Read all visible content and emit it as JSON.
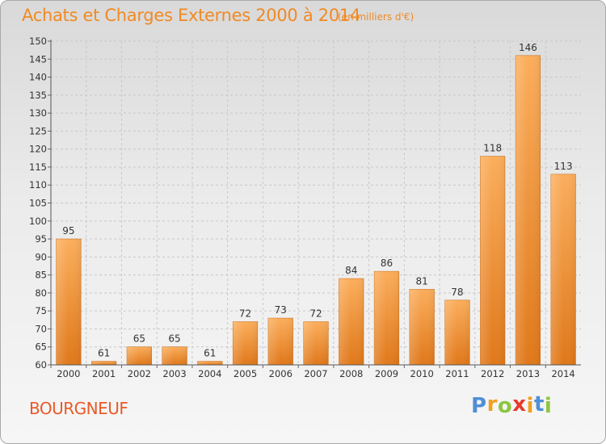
{
  "title": "Achats et Charges Externes 2000 à 2014",
  "subtitle": "(en milliers d'€)",
  "place": "BOURGNEUF",
  "logo": {
    "text": "Proxiti",
    "letters": [
      {
        "char": "P",
        "color": "#4f8fd6"
      },
      {
        "char": "r",
        "color": "#f0a020"
      },
      {
        "char": "o",
        "color": "#8cc63f"
      },
      {
        "char": "x",
        "color": "#e63a2e"
      },
      {
        "char": "i",
        "color": "#f0a020"
      },
      {
        "char": "t",
        "color": "#4f8fd6"
      },
      {
        "char": "i",
        "color": "#8cc63f"
      }
    ]
  },
  "colors": {
    "accent": "#f08a24",
    "bar_light": "#f9a955",
    "bar_dark": "#e07a1c",
    "axis_text": "#333333",
    "grid": "#c8c8c8"
  },
  "chart_data": {
    "type": "bar",
    "categories": [
      "2000",
      "2001",
      "2002",
      "2003",
      "2004",
      "2005",
      "2006",
      "2007",
      "2008",
      "2009",
      "2010",
      "2011",
      "2012",
      "2013",
      "2014"
    ],
    "values": [
      95,
      61,
      65,
      65,
      61,
      72,
      73,
      72,
      84,
      86,
      81,
      78,
      118,
      146,
      113
    ],
    "data_labels": [
      "95",
      "61",
      "65",
      "65",
      "61",
      "72",
      "73",
      "72",
      "84",
      "86",
      "81",
      "78",
      "118",
      "146",
      "113"
    ],
    "title": "Achats et Charges Externes 2000 à 2014",
    "xlabel": "",
    "ylabel": "",
    "ylim": [
      60,
      150
    ],
    "yticks": [
      60,
      65,
      70,
      75,
      80,
      85,
      90,
      95,
      100,
      105,
      110,
      115,
      120,
      125,
      130,
      135,
      140,
      145,
      150
    ],
    "grid": true
  }
}
